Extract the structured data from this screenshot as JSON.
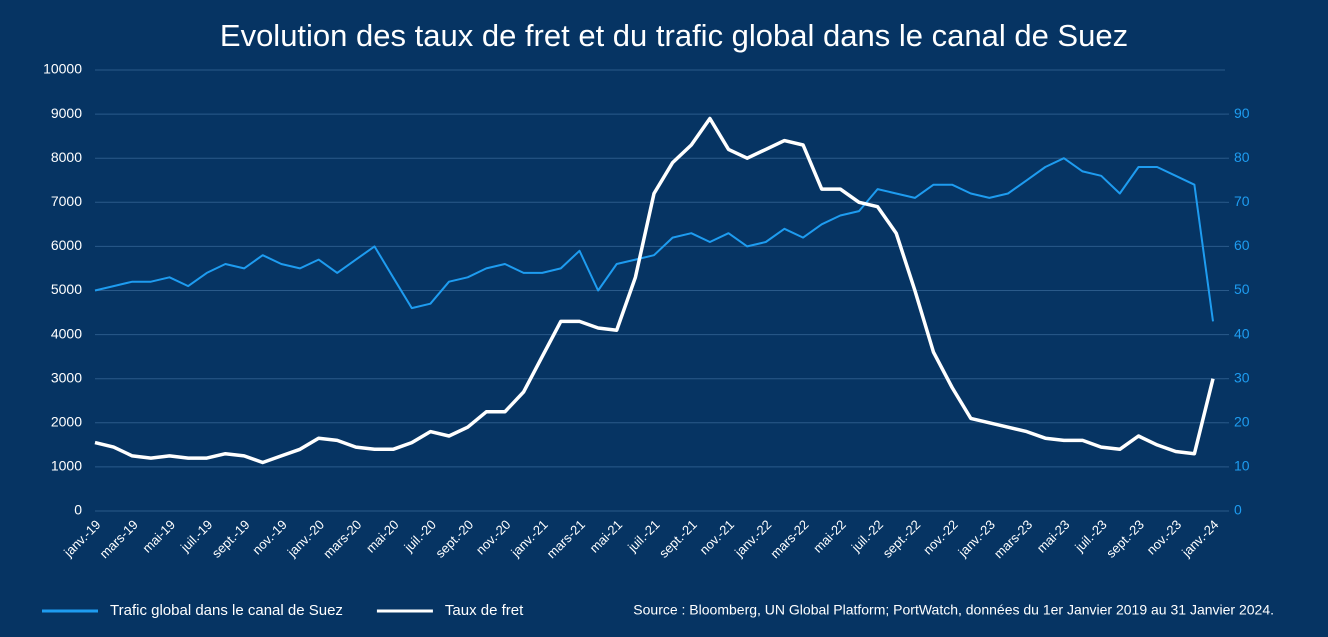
{
  "chart_data": {
    "type": "line",
    "title": "Evolution des taux de fret et du trafic global dans le canal de Suez",
    "source": "Source : Bloomberg, UN Global Platform; PortWatch, données du 1er Janvier 2019 au 31 Janvier 2024.",
    "categories": [
      "janv.-19",
      null,
      "mars-19",
      null,
      "mai-19",
      null,
      "juil.-19",
      null,
      "sept.-19",
      null,
      "nov.-19",
      null,
      "janv.-20",
      null,
      "mars-20",
      null,
      "mai-20",
      null,
      "juil.-20",
      null,
      "sept.-20",
      null,
      "nov.-20",
      null,
      "janv.-21",
      null,
      "mars-21",
      null,
      "mai-21",
      null,
      "juil.-21",
      null,
      "sept.-21",
      null,
      "nov.-21",
      null,
      "janv.-22",
      null,
      "mars-22",
      null,
      "mai-22",
      null,
      "juil.-22",
      null,
      "sept.-22",
      null,
      "nov.-22",
      null,
      "janv.-23",
      null,
      "mars-23",
      null,
      "mai-23",
      null,
      "juil.-23",
      null,
      "sept.-23",
      null,
      "nov.-23",
      null,
      "janv.-24"
    ],
    "series": [
      {
        "name": "Trafic global dans le canal de Suez",
        "color": "#1e9cf0",
        "axis": "y2",
        "values": [
          50,
          51,
          52,
          52,
          53,
          51,
          54,
          56,
          55,
          58,
          56,
          55,
          57,
          54,
          57,
          60,
          53,
          46,
          47,
          52,
          53,
          55,
          56,
          54,
          54,
          55,
          59,
          50,
          56,
          57,
          58,
          62,
          63,
          61,
          63,
          60,
          61,
          64,
          62,
          65,
          67,
          68,
          73,
          72,
          71,
          74,
          74,
          72,
          71,
          72,
          75,
          78,
          80,
          77,
          76,
          72,
          78,
          78,
          76,
          74,
          43
        ]
      },
      {
        "name": "Taux de fret",
        "color": "#ffffff",
        "values": [
          1550,
          1450,
          1250,
          1200,
          1250,
          1200,
          1200,
          1300,
          1250,
          1100,
          1250,
          1400,
          1650,
          1600,
          1450,
          1400,
          1400,
          1550,
          1800,
          1700,
          1900,
          2250,
          2250,
          2700,
          3500,
          4300,
          4300,
          4150,
          4100,
          5300,
          7200,
          7900,
          8300,
          8900,
          8200,
          8000,
          8200,
          8400,
          8300,
          7300,
          7300,
          7000,
          6900,
          6300,
          5000,
          3600,
          2800,
          2100,
          2000,
          1900,
          1800,
          1650,
          1600,
          1600,
          1450,
          1400,
          1700,
          1500,
          1350,
          1300,
          3000
        ]
      }
    ],
    "ylim": [
      0,
      10000
    ],
    "yticks": [
      0,
      1000,
      2000,
      3000,
      4000,
      5000,
      6000,
      7000,
      8000,
      9000,
      10000
    ],
    "y2lim": [
      0,
      100
    ],
    "y2ticks": [
      0,
      10,
      20,
      30,
      40,
      50,
      60,
      70,
      80,
      90
    ],
    "grid": true,
    "legend": "bottom"
  }
}
